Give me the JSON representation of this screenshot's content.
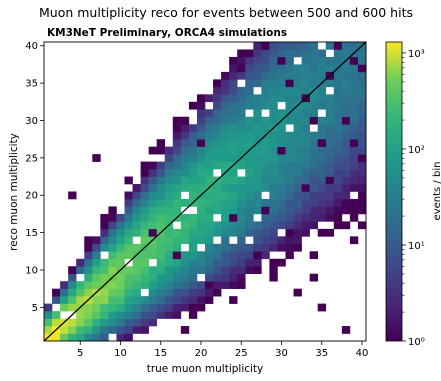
{
  "chart_data": {
    "type": "heatmap",
    "title": "Muon multiplicity reco for events between 500 and 600 hits",
    "subtitle": "KM3NeT Preliminary, ORCA4 simulations",
    "xlabel": "true muon multiplicity",
    "ylabel": "reco muon multiplicity",
    "xlim": [
      0.5,
      40.5
    ],
    "ylim": [
      0.5,
      40.5
    ],
    "xticks": [
      5,
      10,
      15,
      20,
      25,
      30,
      35,
      40
    ],
    "yticks": [
      5,
      10,
      15,
      20,
      25,
      30,
      35,
      40
    ],
    "bin_width": 1,
    "colorbar": {
      "label": "events / bin",
      "scale": "log",
      "range": [
        1,
        1300
      ],
      "tick_labels": [
        "10⁰",
        "10¹",
        "10²",
        "10³"
      ],
      "tick_values": [
        1,
        10,
        100,
        1000
      ]
    },
    "diagonal_line": {
      "from": [
        0.5,
        0.5
      ],
      "to": [
        40.5,
        40.5
      ],
      "color": "#000000"
    },
    "colormap": "viridis",
    "bins_note": "approximate event counts per (true, reco) bin; sparse outliers listed explicitly",
    "outliers": [
      [
        4,
        20
      ],
      [
        7,
        25
      ],
      [
        14,
        15
      ],
      [
        17,
        12
      ],
      [
        18,
        30
      ],
      [
        20,
        27
      ],
      [
        21,
        8
      ],
      [
        24,
        17
      ],
      [
        27,
        12
      ],
      [
        29,
        10
      ],
      [
        32,
        7
      ],
      [
        35,
        5
      ],
      [
        38,
        2
      ],
      [
        22,
        35
      ],
      [
        25,
        37
      ],
      [
        26,
        39
      ],
      [
        28,
        40
      ],
      [
        30,
        38
      ],
      [
        31,
        35
      ],
      [
        33,
        33
      ],
      [
        36,
        36
      ],
      [
        39,
        38
      ],
      [
        40,
        37
      ],
      [
        37,
        40
      ],
      [
        34,
        30
      ],
      [
        38,
        30
      ],
      [
        35,
        27
      ],
      [
        39,
        27
      ],
      [
        30,
        26
      ],
      [
        40,
        25
      ],
      [
        33,
        21
      ],
      [
        36,
        22
      ],
      [
        28,
        18
      ],
      [
        31,
        15
      ]
    ]
  }
}
